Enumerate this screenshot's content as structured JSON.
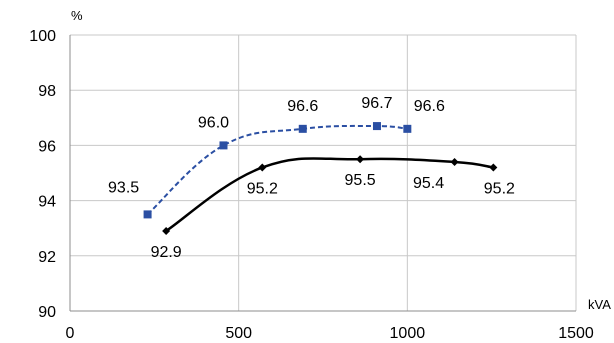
{
  "chart_data": {
    "type": "line",
    "ylabel": "%",
    "xlabel": "kVA",
    "xlim": [
      0,
      1500
    ],
    "ylim": [
      90,
      100
    ],
    "x_ticks": [
      0,
      500,
      1000,
      1500
    ],
    "y_ticks": [
      90,
      92,
      94,
      96,
      98,
      100
    ],
    "grid": true,
    "series": [
      {
        "color": "#2b4fa3",
        "line_style": "dashed",
        "marker": "square",
        "points": [
          {
            "x": 230,
            "y": 93.5,
            "label": "93.5"
          },
          {
            "x": 455,
            "y": 96.0,
            "label": "96.0"
          },
          {
            "x": 690,
            "y": 96.6,
            "label": "96.6"
          },
          {
            "x": 910,
            "y": 96.7,
            "label": "96.7"
          },
          {
            "x": 1000,
            "y": 96.6,
            "label": "96.6"
          }
        ]
      },
      {
        "color": "#000000",
        "line_style": "solid",
        "marker": "diamond",
        "points": [
          {
            "x": 285,
            "y": 92.9,
            "label": "92.9"
          },
          {
            "x": 570,
            "y": 95.2,
            "label": "95.2"
          },
          {
            "x": 860,
            "y": 95.5,
            "label": "95.5"
          },
          {
            "x": 1140,
            "y": 95.4,
            "label": "95.4"
          },
          {
            "x": 1255,
            "y": 95.2,
            "label": "95.2"
          }
        ]
      }
    ]
  }
}
